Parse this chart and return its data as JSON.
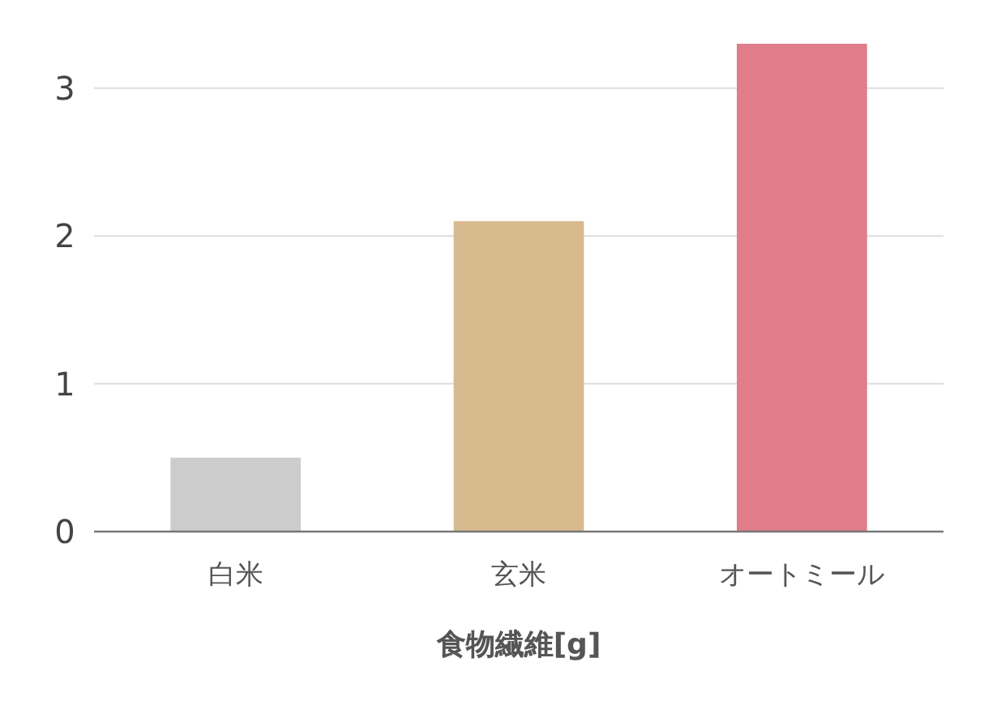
{
  "chart_data": {
    "type": "bar",
    "xlabel": "食物繊維[g]",
    "categories": [
      "白米",
      "玄米",
      "オートミール"
    ],
    "values": [
      0.5,
      2.1,
      3.3
    ],
    "colors": [
      "#cccccc",
      "#d7ba8d",
      "#e07d8a"
    ],
    "ylim": [
      0,
      3.3
    ],
    "yticks": [
      0,
      1,
      2,
      3
    ],
    "grid": "y"
  }
}
